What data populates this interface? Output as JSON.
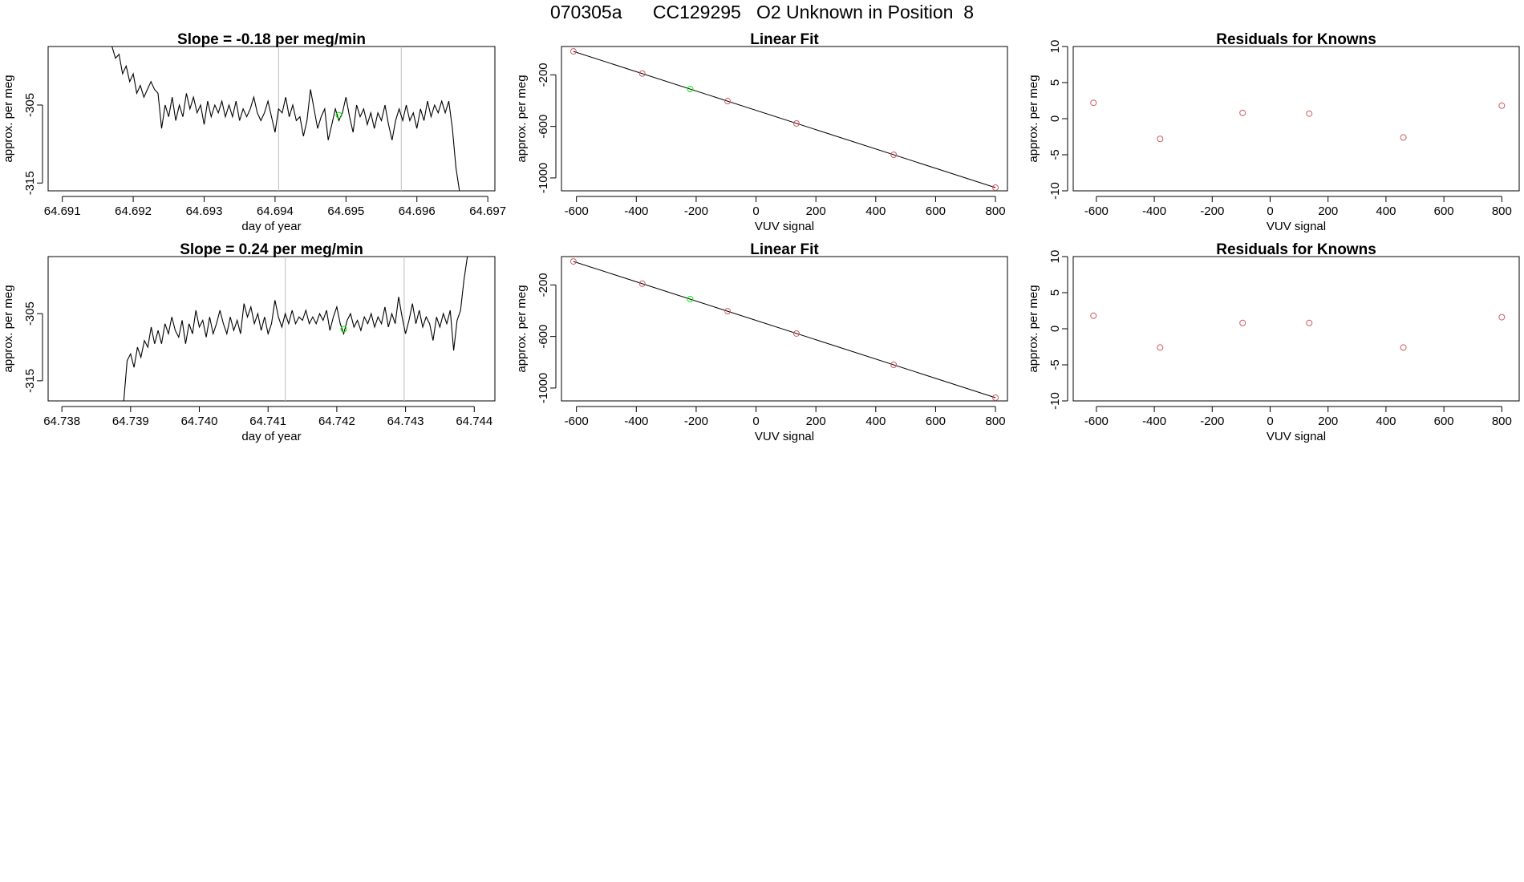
{
  "page": {
    "title": "070305a      CC129295   O2 Unknown in Position  8"
  },
  "colors": {
    "line": "#000000",
    "axis": "#000000",
    "vline": "#bebebe",
    "known_point": "#cd5c5c",
    "unknown_point": "#00ee00"
  },
  "chart_data": [
    {
      "id": "ts1",
      "type": "line",
      "title": "Slope =  -0.18  per meg/min",
      "xlabel": "day of year",
      "ylabel": "approx. per meg",
      "xlim": [
        64.6908,
        64.6971
      ],
      "ylim": [
        -316.0,
        -297.5
      ],
      "xticks": [
        "64.691",
        "64.692",
        "64.693",
        "64.694",
        "64.695",
        "64.696",
        "64.697"
      ],
      "yticks": [
        "-315",
        "-305"
      ],
      "vlines": [
        64.69405,
        64.69578
      ],
      "series": [
        {
          "x": [
            64.6917,
            64.69175,
            64.6918,
            64.69185,
            64.6919,
            64.69195,
            64.692,
            64.69205,
            64.6921,
            64.69215,
            64.6922,
            64.69225,
            64.6923,
            64.69235,
            64.6924,
            64.69245,
            64.6925,
            64.69255,
            64.6926,
            64.69265,
            64.6927,
            64.69275,
            64.6928,
            64.69285,
            64.6929,
            64.69295,
            64.693,
            64.69305,
            64.6931,
            64.69315,
            64.6932,
            64.69325,
            64.6933,
            64.69335,
            64.6934,
            64.69345,
            64.6935,
            64.69355,
            64.6936,
            64.69365,
            64.6937,
            64.69375,
            64.6938,
            64.69385,
            64.6939,
            64.69395,
            64.694,
            64.69405,
            64.6941,
            64.69415,
            64.6942,
            64.69425,
            64.6943,
            64.69435,
            64.6944,
            64.69445,
            64.6945,
            64.69455,
            64.6946,
            64.69465,
            64.6947,
            64.69475,
            64.6948,
            64.69485,
            64.6949,
            64.69495,
            64.695,
            64.69505,
            64.6951,
            64.69515,
            64.6952,
            64.69525,
            64.6953,
            64.69535,
            64.6954,
            64.69545,
            64.6955,
            64.69555,
            64.6956,
            64.69565,
            64.6957,
            64.69575,
            64.6958,
            64.69585,
            64.6959,
            64.69595,
            64.696,
            64.69605,
            64.6961,
            64.69615,
            64.6962,
            64.69625,
            64.6963,
            64.69635,
            64.6964,
            64.69645,
            64.6965,
            64.69655,
            64.6966
          ],
          "y": [
            -297.5,
            -299.0,
            -298.5,
            -301.0,
            -300.0,
            -302.0,
            -301.0,
            -303.5,
            -302.5,
            -304.0,
            -303.0,
            -302.0,
            -303.0,
            -303.5,
            -308.0,
            -305.0,
            -306.5,
            -304.0,
            -307.0,
            -305.0,
            -306.5,
            -303.5,
            -305.5,
            -304.0,
            -306.0,
            -305.0,
            -307.5,
            -304.5,
            -306.5,
            -305.0,
            -306.0,
            -304.5,
            -306.5,
            -305.0,
            -306.5,
            -304.5,
            -307.0,
            -305.5,
            -306.5,
            -305.5,
            -304.0,
            -306.0,
            -307.0,
            -306.0,
            -304.5,
            -306.5,
            -308.5,
            -305.5,
            -306.0,
            -304.0,
            -306.5,
            -305.0,
            -307.0,
            -306.5,
            -309.0,
            -307.0,
            -303.0,
            -305.5,
            -308.0,
            -306.5,
            -305.5,
            -309.5,
            -307.5,
            -305.5,
            -307.0,
            -306.0,
            -304.0,
            -306.5,
            -308.5,
            -305.0,
            -306.5,
            -305.5,
            -307.5,
            -306.0,
            -308.0,
            -306.0,
            -307.0,
            -305.0,
            -307.5,
            -309.5,
            -307.0,
            -305.5,
            -307.0,
            -305.0,
            -307.0,
            -306.0,
            -308.0,
            -305.5,
            -307.0,
            -304.5,
            -306.5,
            -305.0,
            -306.0,
            -304.5,
            -306.0,
            -304.5,
            -308.0,
            -313.0,
            -316.0
          ]
        }
      ],
      "marker": {
        "x": 64.6949,
        "y": -306.3
      }
    },
    {
      "id": "fit1",
      "type": "scatter",
      "title": "Linear Fit",
      "xlabel": "VUV signal",
      "ylabel": "approx. per meg",
      "xlim": [
        -650,
        840
      ],
      "ylim": [
        -1100,
        20
      ],
      "xticks": [
        "-600",
        "-400",
        "-200",
        "0",
        "200",
        "400",
        "600",
        "800"
      ],
      "yticks": [
        "-1000",
        "-600",
        "-200"
      ],
      "fit_line": [
        [
          -610,
          -18
        ],
        [
          800,
          -1075
        ]
      ],
      "points": [
        {
          "x": -610,
          "y": -18,
          "kind": "known"
        },
        {
          "x": -380,
          "y": -190,
          "kind": "known"
        },
        {
          "x": -95,
          "y": -404,
          "kind": "known"
        },
        {
          "x": 135,
          "y": -577,
          "kind": "known"
        },
        {
          "x": 460,
          "y": -820,
          "kind": "known"
        },
        {
          "x": 800,
          "y": -1075,
          "kind": "known"
        },
        {
          "x": -220,
          "y": -310,
          "kind": "unknown"
        }
      ]
    },
    {
      "id": "res1",
      "type": "scatter",
      "title": "Residuals for Knowns",
      "xlabel": "VUV signal",
      "ylabel": "approx. per meg",
      "xlim": [
        -680,
        860
      ],
      "ylim": [
        -10,
        10
      ],
      "xticks": [
        "-600",
        "-400",
        "-200",
        "0",
        "200",
        "400",
        "600",
        "800"
      ],
      "yticks": [
        "-10",
        "-5",
        "0",
        "5",
        "10"
      ],
      "points": [
        {
          "x": -610,
          "y": 2.2
        },
        {
          "x": -380,
          "y": -2.8
        },
        {
          "x": -95,
          "y": 0.8
        },
        {
          "x": 135,
          "y": 0.7
        },
        {
          "x": 460,
          "y": -2.6
        },
        {
          "x": 800,
          "y": 1.8
        }
      ]
    },
    {
      "id": "ts2",
      "type": "line",
      "title": "Slope =  0.24  per meg/min",
      "xlabel": "day of year",
      "ylabel": "approx. per meg",
      "xlim": [
        64.7378,
        64.7443
      ],
      "ylim": [
        -318.0,
        -296.5
      ],
      "xticks": [
        "64.738",
        "64.739",
        "64.740",
        "64.741",
        "64.742",
        "64.743",
        "64.744"
      ],
      "yticks": [
        "-315",
        "-305"
      ],
      "vlines": [
        64.74125,
        64.74298
      ],
      "series": [
        {
          "x": [
            64.7389,
            64.73895,
            64.739,
            64.73905,
            64.7391,
            64.73915,
            64.7392,
            64.73925,
            64.7393,
            64.73935,
            64.7394,
            64.73945,
            64.7395,
            64.73955,
            64.7396,
            64.73965,
            64.7397,
            64.73975,
            64.7398,
            64.73985,
            64.7399,
            64.73995,
            64.74,
            64.74005,
            64.7401,
            64.74015,
            64.7402,
            64.74025,
            64.7403,
            64.74035,
            64.7404,
            64.74045,
            64.7405,
            64.74055,
            64.7406,
            64.74065,
            64.7407,
            64.74075,
            64.7408,
            64.74085,
            64.7409,
            64.74095,
            64.741,
            64.74105,
            64.7411,
            64.74115,
            64.7412,
            64.74125,
            64.7413,
            64.74135,
            64.7414,
            64.74145,
            64.7415,
            64.74155,
            64.7416,
            64.74165,
            64.7417,
            64.74175,
            64.7418,
            64.74185,
            64.7419,
            64.74195,
            64.742,
            64.74205,
            64.7421,
            64.74215,
            64.7422,
            64.74225,
            64.7423,
            64.74235,
            64.7424,
            64.74245,
            64.7425,
            64.74255,
            64.7426,
            64.74265,
            64.7427,
            64.74275,
            64.7428,
            64.74285,
            64.7429,
            64.74295,
            64.743,
            64.74305,
            64.7431,
            64.74315,
            64.7432,
            64.74325,
            64.7433,
            64.74335,
            64.7434,
            64.74345,
            64.7435,
            64.74355,
            64.7436,
            64.74365,
            64.7437,
            64.74375,
            64.7438,
            64.74385,
            64.7439
          ],
          "y": [
            -318.0,
            -312.0,
            -311.0,
            -313.0,
            -310.0,
            -311.5,
            -309.0,
            -310.0,
            -307.0,
            -309.5,
            -307.5,
            -309.5,
            -306.5,
            -308.0,
            -305.5,
            -307.5,
            -308.5,
            -306.0,
            -309.5,
            -306.5,
            -308.0,
            -304.5,
            -307.0,
            -306.0,
            -308.5,
            -305.5,
            -308.0,
            -306.5,
            -304.5,
            -306.5,
            -308.0,
            -305.5,
            -307.5,
            -306.0,
            -308.0,
            -303.5,
            -305.5,
            -304.0,
            -306.5,
            -305.0,
            -307.5,
            -305.5,
            -308.0,
            -306.5,
            -303.0,
            -305.5,
            -307.0,
            -305.0,
            -306.5,
            -304.5,
            -306.5,
            -305.5,
            -306.0,
            -304.5,
            -306.5,
            -305.5,
            -306.5,
            -305.0,
            -306.0,
            -304.5,
            -307.5,
            -305.5,
            -304.0,
            -306.5,
            -308.0,
            -306.0,
            -305.0,
            -307.0,
            -306.0,
            -307.5,
            -305.5,
            -306.5,
            -305.0,
            -307.0,
            -305.5,
            -306.5,
            -304.0,
            -307.0,
            -305.0,
            -306.5,
            -302.5,
            -305.5,
            -308.0,
            -306.0,
            -303.5,
            -306.5,
            -304.5,
            -307.0,
            -305.5,
            -306.5,
            -309.0,
            -305.5,
            -307.0,
            -305.0,
            -306.5,
            -304.5,
            -310.5,
            -306.0,
            -304.5,
            -300.0,
            -296.5
          ]
        }
      ],
      "marker": {
        "x": 64.7421,
        "y": -307.3
      }
    },
    {
      "id": "fit2",
      "type": "scatter",
      "title": "Linear Fit",
      "xlabel": "VUV signal",
      "ylabel": "approx. per meg",
      "xlim": [
        -650,
        840
      ],
      "ylim": [
        -1100,
        20
      ],
      "xticks": [
        "-600",
        "-400",
        "-200",
        "0",
        "200",
        "400",
        "600",
        "800"
      ],
      "yticks": [
        "-1000",
        "-600",
        "-200"
      ],
      "fit_line": [
        [
          -610,
          -18
        ],
        [
          800,
          -1075
        ]
      ],
      "points": [
        {
          "x": -610,
          "y": -18,
          "kind": "known"
        },
        {
          "x": -380,
          "y": -190,
          "kind": "known"
        },
        {
          "x": -95,
          "y": -404,
          "kind": "known"
        },
        {
          "x": 135,
          "y": -577,
          "kind": "known"
        },
        {
          "x": 460,
          "y": -820,
          "kind": "known"
        },
        {
          "x": 800,
          "y": -1075,
          "kind": "known"
        },
        {
          "x": -220,
          "y": -310,
          "kind": "unknown"
        }
      ]
    },
    {
      "id": "res2",
      "type": "scatter",
      "title": "Residuals for Knowns",
      "xlabel": "VUV signal",
      "ylabel": "approx. per meg",
      "xlim": [
        -680,
        860
      ],
      "ylim": [
        -10,
        10
      ],
      "xticks": [
        "-600",
        "-400",
        "-200",
        "0",
        "200",
        "400",
        "600",
        "800"
      ],
      "yticks": [
        "-10",
        "-5",
        "0",
        "5",
        "10"
      ],
      "points": [
        {
          "x": -610,
          "y": 1.8
        },
        {
          "x": -380,
          "y": -2.6
        },
        {
          "x": -95,
          "y": 0.8
        },
        {
          "x": 135,
          "y": 0.8
        },
        {
          "x": 460,
          "y": -2.6
        },
        {
          "x": 800,
          "y": 1.6
        }
      ]
    }
  ]
}
